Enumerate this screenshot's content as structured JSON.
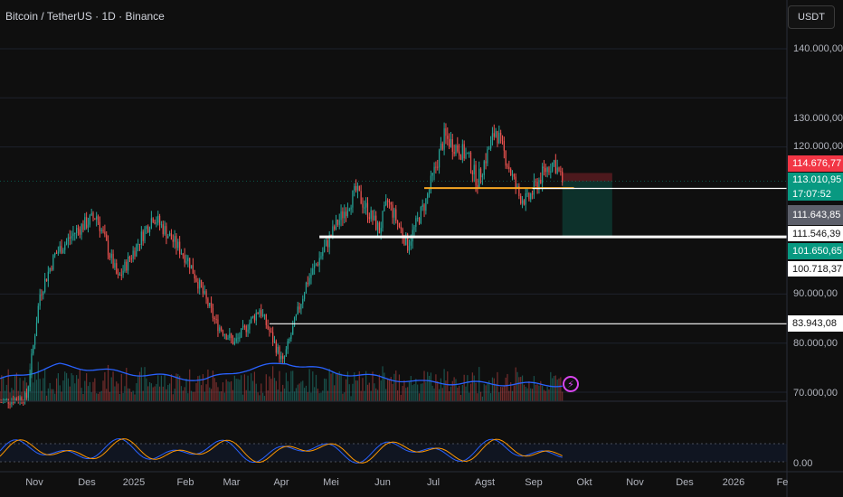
{
  "header": {
    "title": "Bitcoin / TetherUS · 1D · Binance",
    "currency_button": "USDT"
  },
  "price_axis": {
    "labels": [
      "140.000,00",
      "130.000,00",
      "120.000,00",
      "90.000,00",
      "80.000,00",
      "70.000,00"
    ],
    "osc_label": "0.00"
  },
  "price_tags": {
    "current_price": "114.676,77",
    "entry_price": "113.010,95",
    "countdown": "17:07:52",
    "gray_level": "111.643,85",
    "white_level": "111.546,39",
    "target_price": "101.650,65",
    "support_level": "100.718,37",
    "low_level": "83.943,08"
  },
  "time_axis": [
    "Nov",
    "Des",
    "2025",
    "Feb",
    "Mar",
    "Apr",
    "Mei",
    "Jun",
    "Jul",
    "Agst",
    "Sep",
    "Okt",
    "Nov",
    "Des",
    "2026",
    "Fe"
  ],
  "colors": {
    "up": "#26a69a",
    "down": "#ef5350",
    "ma_line": "#2962ff",
    "orange_line": "#f5a623",
    "osc_k": "#2962ff",
    "osc_d": "#ff9800",
    "tag_red": "#f23645",
    "tag_green": "#089981",
    "tag_gray": "#5d606b",
    "tag_white": "#ffffff"
  },
  "icons": {
    "alert": "lightning-bolt-icon"
  },
  "chart_data": {
    "type": "candlestick",
    "title": "Bitcoin / TetherUS · 1D · Binance",
    "x_range": [
      "2024-10-20",
      "2026-02-05"
    ],
    "ylim": [
      70000,
      140000
    ],
    "y_ticks": [
      70000,
      80000,
      90000,
      120000,
      130000,
      140000
    ],
    "price_keypoints": [
      {
        "date": "2024-10-20",
        "price": 68000
      },
      {
        "date": "2024-11-05",
        "price": 69000
      },
      {
        "date": "2024-11-13",
        "price": 90000
      },
      {
        "date": "2024-11-22",
        "price": 98000
      },
      {
        "date": "2024-12-05",
        "price": 103000
      },
      {
        "date": "2024-12-17",
        "price": 106000
      },
      {
        "date": "2024-12-30",
        "price": 93000
      },
      {
        "date": "2025-01-20",
        "price": 106000
      },
      {
        "date": "2025-02-10",
        "price": 97000
      },
      {
        "date": "2025-02-27",
        "price": 84000
      },
      {
        "date": "2025-03-10",
        "price": 80000
      },
      {
        "date": "2025-03-25",
        "price": 87000
      },
      {
        "date": "2025-04-08",
        "price": 76000
      },
      {
        "date": "2025-04-22",
        "price": 92000
      },
      {
        "date": "2025-05-10",
        "price": 104000
      },
      {
        "date": "2025-05-22",
        "price": 111000
      },
      {
        "date": "2025-06-05",
        "price": 103000
      },
      {
        "date": "2025-06-10",
        "price": 109000
      },
      {
        "date": "2025-06-22",
        "price": 100000
      },
      {
        "date": "2025-07-03",
        "price": 109000
      },
      {
        "date": "2025-07-14",
        "price": 122000
      },
      {
        "date": "2025-07-28",
        "price": 118000
      },
      {
        "date": "2025-08-03",
        "price": 113000
      },
      {
        "date": "2025-08-14",
        "price": 123500
      },
      {
        "date": "2025-08-28",
        "price": 110000
      },
      {
        "date": "2025-09-02",
        "price": 109000
      },
      {
        "date": "2025-09-12",
        "price": 115000
      },
      {
        "date": "2025-09-18",
        "price": 117000
      },
      {
        "date": "2025-09-23",
        "price": 113000
      }
    ],
    "moving_average_keypoints": [
      {
        "date": "2024-10-20",
        "price": 72500
      },
      {
        "date": "2024-11-25",
        "price": 75500
      },
      {
        "date": "2025-01-01",
        "price": 74000
      },
      {
        "date": "2025-02-20",
        "price": 72500
      },
      {
        "date": "2025-03-15",
        "price": 74500
      },
      {
        "date": "2025-04-10",
        "price": 76000
      },
      {
        "date": "2025-05-10",
        "price": 74000
      },
      {
        "date": "2025-07-01",
        "price": 72000
      },
      {
        "date": "2025-09-23",
        "price": 71500
      }
    ],
    "horizontal_levels": [
      {
        "name": "orange-line",
        "price": 111600,
        "from": "2025-07-02",
        "to": "2025-09-30"
      },
      {
        "name": "white-line-thick",
        "price": 101650,
        "from": "2025-04-30",
        "to": "2026-02-05"
      },
      {
        "name": "white-line-thin",
        "price": 111546,
        "from": "2025-09-05",
        "to": "2026-02-05"
      },
      {
        "name": "white-line-low",
        "price": 83943,
        "from": "2025-03-31",
        "to": "2026-02-05"
      }
    ],
    "position": {
      "entry": 113010.95,
      "stop": 114676.77,
      "target": 101650.65,
      "from": "2025-09-23",
      "to": "2025-10-23"
    },
    "oscillator": {
      "ylim": [
        0,
        100
      ],
      "label": "0.00"
    }
  }
}
